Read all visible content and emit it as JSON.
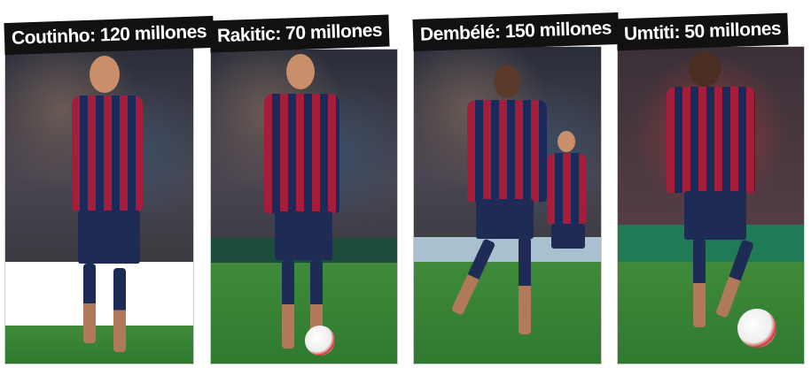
{
  "panels": [
    {
      "caption": "Coutinho: 120 millones"
    },
    {
      "caption": "Rakitic: 70 millones"
    },
    {
      "caption": "Dembélé: 150 millones"
    },
    {
      "caption": "Umtiti: 50 millones"
    }
  ],
  "colors": {
    "caption_bg": "#111111",
    "caption_text": "#ffffff",
    "kit_red": "#a41e3c",
    "kit_blue": "#1b2a5c",
    "pitch": "#3f8a3a"
  }
}
